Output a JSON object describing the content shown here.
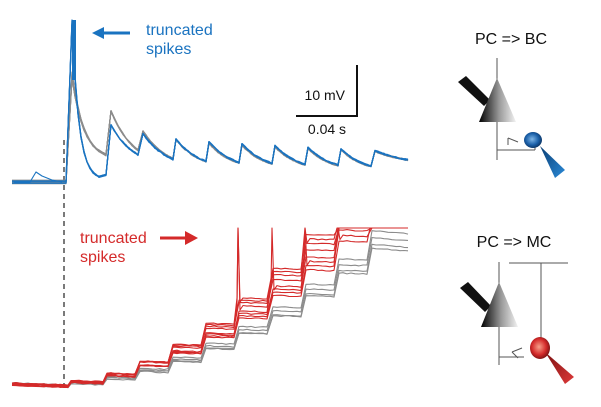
{
  "annotations": {
    "truncated_top_line1": "truncated",
    "truncated_top_line2": "spikes",
    "truncated_bottom_line1": "truncated",
    "truncated_bottom_line2": "spikes"
  },
  "scale_bar": {
    "voltage_label": "10 mV",
    "time_label": "0.04 s"
  },
  "schematics": {
    "top_label": "PC => BC",
    "bottom_label": "PC => MC"
  },
  "colors": {
    "bc_blue": "#1a73c0",
    "mc_red": "#d42a2a",
    "trace_gray": "#8c8c8c"
  }
}
